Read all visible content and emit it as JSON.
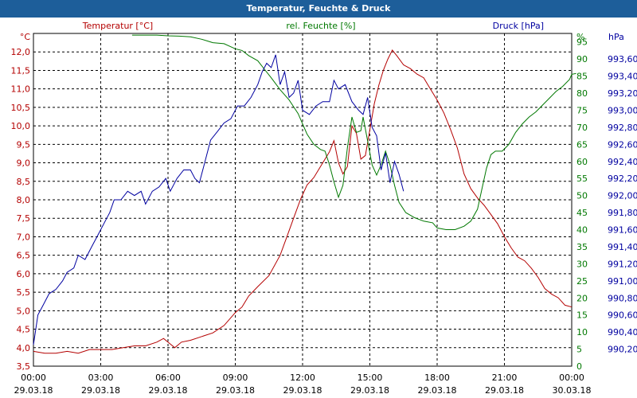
{
  "window": {
    "title": "Temperatur, Feuchte & Druck"
  },
  "colors": {
    "temperature": "#b40000",
    "humidity": "#007800",
    "pressure": "#0000a0",
    "titlebar": "#1d5e9a",
    "grid": "#000000"
  },
  "chart_data": {
    "type": "line",
    "title": "Temperatur, Feuchte & Druck",
    "grid": true,
    "x_ticks": [
      {
        "time": "00:00",
        "date": "29.03.18"
      },
      {
        "time": "03:00",
        "date": "29.03.18"
      },
      {
        "time": "06:00",
        "date": "29.03.18"
      },
      {
        "time": "09:00",
        "date": "29.03.18"
      },
      {
        "time": "12:00",
        "date": "29.03.18"
      },
      {
        "time": "15:00",
        "date": "29.03.18"
      },
      {
        "time": "18:00",
        "date": "29.03.18"
      },
      {
        "time": "21:00",
        "date": "29.03.18"
      },
      {
        "time": "00:00",
        "date": "30.03.18"
      }
    ],
    "xlim_hours": [
      0,
      24
    ],
    "axes": {
      "temperature": {
        "label": "Temperatur [°C]",
        "unit": "°C",
        "ylim": [
          3.5,
          12.5
        ],
        "tick_step": 0.5,
        "ticks": [
          "3,5",
          "4,0",
          "4,5",
          "5,0",
          "5,5",
          "6,0",
          "6,5",
          "7,0",
          "7,5",
          "8,0",
          "8,5",
          "9,0",
          "9,5",
          "10,0",
          "10,5",
          "11,0",
          "11,5",
          "12,0"
        ]
      },
      "humidity": {
        "label": "rel. Feuchte [%]",
        "unit": "%",
        "ylim": [
          0,
          97.5
        ],
        "tick_step": 5,
        "ticks": [
          "0",
          "5",
          "10",
          "15",
          "20",
          "25",
          "30",
          "35",
          "40",
          "45",
          "50",
          "55",
          "60",
          "65",
          "70",
          "75",
          "80",
          "85",
          "90",
          "95"
        ]
      },
      "pressure": {
        "label": "Druck [hPa]",
        "unit": "hPa",
        "ylim": [
          990.0,
          993.9
        ],
        "tick_step": 0.2,
        "ticks": [
          "990,20",
          "990,40",
          "990,60",
          "990,80",
          "991,00",
          "991,20",
          "991,40",
          "991,60",
          "991,80",
          "992,00",
          "992,20",
          "992,40",
          "992,60",
          "992,80",
          "993,00",
          "993,20",
          "993,40",
          "993,60"
        ]
      }
    },
    "series": [
      {
        "name": "Temperatur [°C]",
        "axis": "temperature",
        "color": "#b40000",
        "points": [
          [
            0,
            3.9
          ],
          [
            0.5,
            3.85
          ],
          [
            1,
            3.85
          ],
          [
            1.5,
            3.9
          ],
          [
            2,
            3.85
          ],
          [
            2.5,
            3.95
          ],
          [
            3,
            3.95
          ],
          [
            3.5,
            3.95
          ],
          [
            4,
            4.0
          ],
          [
            4.5,
            4.05
          ],
          [
            5,
            4.05
          ],
          [
            5.5,
            4.15
          ],
          [
            5.8,
            4.25
          ],
          [
            6.1,
            4.1
          ],
          [
            6.3,
            4.0
          ],
          [
            6.6,
            4.15
          ],
          [
            7,
            4.2
          ],
          [
            7.5,
            4.3
          ],
          [
            8,
            4.4
          ],
          [
            8.5,
            4.6
          ],
          [
            9,
            4.95
          ],
          [
            9.3,
            5.1
          ],
          [
            9.6,
            5.4
          ],
          [
            10,
            5.65
          ],
          [
            10.5,
            5.95
          ],
          [
            11,
            6.5
          ],
          [
            11.3,
            7.0
          ],
          [
            11.6,
            7.5
          ],
          [
            11.9,
            8.0
          ],
          [
            12.2,
            8.4
          ],
          [
            12.5,
            8.6
          ],
          [
            12.8,
            8.9
          ],
          [
            13.0,
            9.1
          ],
          [
            13.2,
            9.3
          ],
          [
            13.4,
            9.6
          ],
          [
            13.6,
            9.0
          ],
          [
            13.8,
            8.7
          ],
          [
            14.0,
            8.9
          ],
          [
            14.2,
            10.0
          ],
          [
            14.4,
            9.8
          ],
          [
            14.6,
            9.1
          ],
          [
            14.8,
            9.2
          ],
          [
            15.0,
            9.9
          ],
          [
            15.2,
            10.6
          ],
          [
            15.4,
            11.1
          ],
          [
            15.6,
            11.5
          ],
          [
            15.8,
            11.8
          ],
          [
            16.0,
            12.05
          ],
          [
            16.2,
            11.9
          ],
          [
            16.5,
            11.65
          ],
          [
            16.8,
            11.55
          ],
          [
            17.1,
            11.4
          ],
          [
            17.4,
            11.3
          ],
          [
            17.7,
            11.0
          ],
          [
            18.0,
            10.7
          ],
          [
            18.3,
            10.35
          ],
          [
            18.6,
            9.9
          ],
          [
            18.9,
            9.4
          ],
          [
            19.2,
            8.7
          ],
          [
            19.5,
            8.3
          ],
          [
            19.8,
            8.05
          ],
          [
            20.1,
            7.85
          ],
          [
            20.4,
            7.6
          ],
          [
            20.7,
            7.35
          ],
          [
            21.0,
            7.0
          ],
          [
            21.3,
            6.7
          ],
          [
            21.6,
            6.45
          ],
          [
            21.9,
            6.35
          ],
          [
            22.2,
            6.15
          ],
          [
            22.5,
            5.9
          ],
          [
            22.8,
            5.6
          ],
          [
            23.1,
            5.45
          ],
          [
            23.4,
            5.35
          ],
          [
            23.7,
            5.15
          ],
          [
            24.0,
            5.1
          ]
        ]
      },
      {
        "name": "rel. Feuchte [%]",
        "axis": "humidity",
        "color": "#007800",
        "points": [
          [
            4.4,
            97
          ],
          [
            5,
            97
          ],
          [
            5.5,
            97
          ],
          [
            6,
            96.8
          ],
          [
            6.5,
            96.7
          ],
          [
            7,
            96.5
          ],
          [
            7.5,
            95.8
          ],
          [
            7.8,
            95.2
          ],
          [
            8,
            94.8
          ],
          [
            8.5,
            94.5
          ],
          [
            9,
            93
          ],
          [
            9.3,
            92.5
          ],
          [
            9.6,
            91
          ],
          [
            10,
            89.5
          ],
          [
            10.3,
            87
          ],
          [
            10.6,
            84.5
          ],
          [
            11.0,
            81
          ],
          [
            11.4,
            78
          ],
          [
            11.8,
            74
          ],
          [
            12.2,
            68
          ],
          [
            12.5,
            65
          ],
          [
            12.8,
            63.5
          ],
          [
            13.0,
            63
          ],
          [
            13.2,
            59
          ],
          [
            13.4,
            54
          ],
          [
            13.6,
            49.5
          ],
          [
            13.8,
            53
          ],
          [
            14.0,
            64
          ],
          [
            14.2,
            73
          ],
          [
            14.4,
            68.5
          ],
          [
            14.6,
            69
          ],
          [
            14.7,
            73
          ],
          [
            14.9,
            66
          ],
          [
            15.1,
            59
          ],
          [
            15.3,
            56
          ],
          [
            15.5,
            59
          ],
          [
            15.7,
            63
          ],
          [
            15.9,
            59
          ],
          [
            16.1,
            53
          ],
          [
            16.3,
            48
          ],
          [
            16.6,
            45
          ],
          [
            17.0,
            43.5
          ],
          [
            17.4,
            42.5
          ],
          [
            17.8,
            42
          ],
          [
            18.0,
            40.5
          ],
          [
            18.4,
            40
          ],
          [
            18.8,
            40
          ],
          [
            19.2,
            41
          ],
          [
            19.5,
            42.5
          ],
          [
            19.8,
            46
          ],
          [
            20.0,
            52
          ],
          [
            20.2,
            58
          ],
          [
            20.4,
            62
          ],
          [
            20.6,
            63
          ],
          [
            20.9,
            63
          ],
          [
            21.2,
            65
          ],
          [
            21.5,
            68.5
          ],
          [
            21.8,
            71
          ],
          [
            22.1,
            73
          ],
          [
            22.4,
            74.5
          ],
          [
            22.7,
            76.5
          ],
          [
            23.0,
            78.5
          ],
          [
            23.3,
            80.5
          ],
          [
            23.6,
            82
          ],
          [
            23.9,
            84
          ],
          [
            24.0,
            85.5
          ],
          [
            24.2,
            85.8
          ]
        ]
      },
      {
        "name": "Druck [hPa]",
        "axis": "pressure",
        "color": "#0000a0",
        "points": [
          [
            0,
            990.25
          ],
          [
            0.2,
            990.6
          ],
          [
            0.4,
            990.7
          ],
          [
            0.7,
            990.85
          ],
          [
            1,
            990.9
          ],
          [
            1.3,
            991.0
          ],
          [
            1.5,
            991.1
          ],
          [
            1.8,
            991.15
          ],
          [
            2.0,
            991.3
          ],
          [
            2.3,
            991.25
          ],
          [
            2.6,
            991.4
          ],
          [
            2.9,
            991.55
          ],
          [
            3.2,
            991.7
          ],
          [
            3.4,
            991.8
          ],
          [
            3.6,
            991.95
          ],
          [
            3.9,
            991.95
          ],
          [
            4.2,
            992.05
          ],
          [
            4.5,
            992.0
          ],
          [
            4.8,
            992.05
          ],
          [
            5.0,
            991.9
          ],
          [
            5.3,
            992.05
          ],
          [
            5.6,
            992.1
          ],
          [
            5.9,
            992.2
          ],
          [
            6.1,
            992.05
          ],
          [
            6.4,
            992.2
          ],
          [
            6.7,
            992.3
          ],
          [
            7.0,
            992.3
          ],
          [
            7.2,
            992.2
          ],
          [
            7.4,
            992.15
          ],
          [
            7.6,
            992.35
          ],
          [
            7.9,
            992.65
          ],
          [
            8.2,
            992.75
          ],
          [
            8.5,
            992.85
          ],
          [
            8.8,
            992.9
          ],
          [
            9.1,
            993.05
          ],
          [
            9.4,
            993.05
          ],
          [
            9.7,
            993.15
          ],
          [
            10.0,
            993.3
          ],
          [
            10.2,
            993.45
          ],
          [
            10.4,
            993.55
          ],
          [
            10.6,
            993.5
          ],
          [
            10.8,
            993.65
          ],
          [
            11.0,
            993.3
          ],
          [
            11.2,
            993.45
          ],
          [
            11.4,
            993.15
          ],
          [
            11.6,
            993.2
          ],
          [
            11.8,
            993.35
          ],
          [
            12.0,
            993.0
          ],
          [
            12.3,
            992.95
          ],
          [
            12.6,
            993.05
          ],
          [
            12.9,
            993.1
          ],
          [
            13.2,
            993.1
          ],
          [
            13.4,
            993.35
          ],
          [
            13.6,
            993.25
          ],
          [
            13.9,
            993.3
          ],
          [
            14.2,
            993.1
          ],
          [
            14.5,
            993.0
          ],
          [
            14.7,
            992.95
          ],
          [
            14.9,
            993.15
          ],
          [
            15.1,
            992.8
          ],
          [
            15.3,
            992.7
          ],
          [
            15.5,
            992.3
          ],
          [
            15.7,
            992.5
          ],
          [
            15.9,
            992.15
          ],
          [
            16.1,
            992.4
          ],
          [
            16.3,
            992.25
          ],
          [
            16.5,
            992.05
          ]
        ]
      }
    ]
  }
}
